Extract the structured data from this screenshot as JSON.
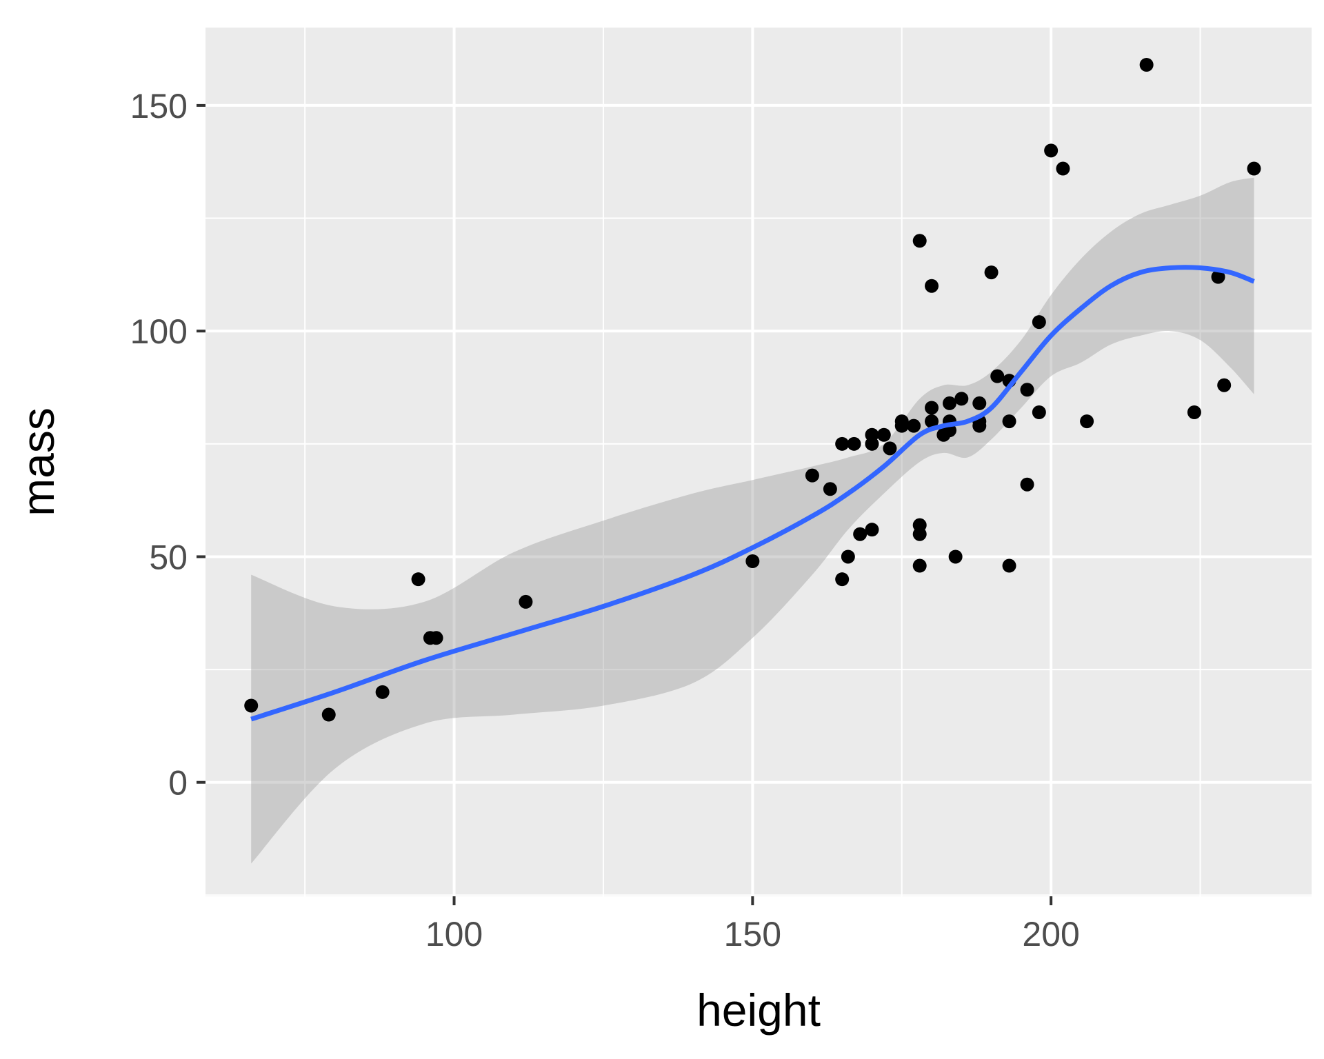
{
  "chart_data": {
    "type": "scatter",
    "title": "",
    "xlabel": "height",
    "ylabel": "mass",
    "xlim": [
      58.35,
      243.65
    ],
    "ylim": [
      -25.25,
      167.25
    ],
    "x_ticks": [
      100,
      150,
      200
    ],
    "y_ticks": [
      0,
      50,
      100,
      150
    ],
    "x_minor_ticks": [
      75,
      125,
      175,
      225
    ],
    "y_minor_ticks": [
      -25,
      25,
      75,
      125
    ],
    "grid": true,
    "legend": "none",
    "colors": {
      "panel": "#ebebeb",
      "grid": "#ffffff",
      "points": "#000000",
      "smooth_line": "#3366ff",
      "ribbon": "#999999",
      "tick_text": "#4d4d4d",
      "axis_title": "#000000"
    },
    "points": [
      [
        66,
        17
      ],
      [
        79,
        15
      ],
      [
        88,
        20
      ],
      [
        94,
        45
      ],
      [
        96,
        32
      ],
      [
        97,
        32
      ],
      [
        112,
        40
      ],
      [
        150,
        49
      ],
      [
        160,
        68
      ],
      [
        163,
        65
      ],
      [
        165,
        75
      ],
      [
        165,
        45
      ],
      [
        166,
        50
      ],
      [
        167,
        75
      ],
      [
        168,
        55
      ],
      [
        170,
        77
      ],
      [
        170,
        75
      ],
      [
        170,
        56
      ],
      [
        172,
        77
      ],
      [
        173,
        74
      ],
      [
        175,
        80
      ],
      [
        175,
        79
      ],
      [
        177,
        79
      ],
      [
        178,
        120
      ],
      [
        178,
        57
      ],
      [
        178,
        55
      ],
      [
        178,
        48
      ],
      [
        180,
        110
      ],
      [
        180,
        83
      ],
      [
        180,
        80
      ],
      [
        182,
        77
      ],
      [
        183,
        84
      ],
      [
        183,
        80
      ],
      [
        183,
        78
      ],
      [
        184,
        50
      ],
      [
        185,
        85
      ],
      [
        188,
        84
      ],
      [
        188,
        80
      ],
      [
        188,
        79
      ],
      [
        190,
        113
      ],
      [
        191,
        90
      ],
      [
        193,
        89
      ],
      [
        193,
        80
      ],
      [
        193,
        48
      ],
      [
        196,
        87
      ],
      [
        196,
        66
      ],
      [
        198,
        102
      ],
      [
        198,
        82
      ],
      [
        200,
        140
      ],
      [
        202,
        136
      ],
      [
        206,
        80
      ],
      [
        216,
        159
      ],
      [
        224,
        82
      ],
      [
        228,
        112
      ],
      [
        229,
        88
      ],
      [
        234,
        136
      ]
    ],
    "smooth": {
      "x": [
        66,
        80,
        95,
        110,
        125,
        140,
        150,
        160,
        166,
        172,
        178,
        182,
        186,
        190,
        195,
        200,
        205,
        210,
        215,
        220,
        225,
        230,
        234
      ],
      "y": [
        14,
        20,
        27,
        33,
        39,
        46,
        52,
        59,
        64,
        70,
        77,
        79,
        80,
        83,
        91,
        99,
        105,
        110,
        113,
        114,
        114,
        113,
        111
      ],
      "lower": [
        -18,
        3,
        13,
        15,
        17,
        22,
        32,
        46,
        56,
        64,
        71,
        73,
        72,
        76,
        83,
        90,
        93,
        97,
        99,
        100,
        98,
        92,
        86
      ],
      "upper": [
        46,
        39,
        40,
        51,
        58,
        64,
        67,
        70,
        72,
        75,
        85,
        88,
        88,
        91,
        98,
        108,
        116,
        122,
        126,
        128,
        130,
        133,
        134
      ]
    }
  }
}
